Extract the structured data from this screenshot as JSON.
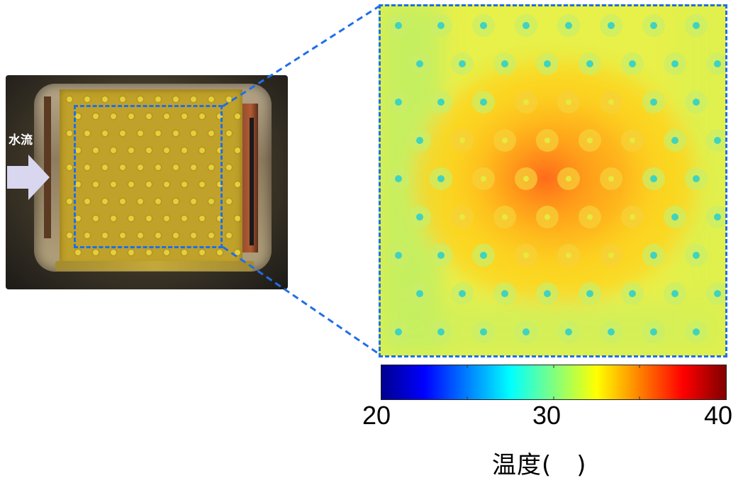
{
  "photo": {
    "flow_label": "水流"
  },
  "colorbar": {
    "min": 20,
    "mid": 30,
    "max": 40,
    "tick_min_label": "20",
    "tick_mid_label": "30",
    "tick_max_label": "40",
    "title": "温度(　)",
    "colormap": [
      "#00008f",
      "#0000ff",
      "#0080ff",
      "#00ffff",
      "#80ff80",
      "#ffff00",
      "#ff8000",
      "#ff0000",
      "#800000"
    ]
  },
  "heatmap": {
    "grid_rows": 9,
    "grid_cols": 9
  },
  "colors": {
    "selection": "#1f6fe8",
    "arrow": "#d9d6f0"
  }
}
